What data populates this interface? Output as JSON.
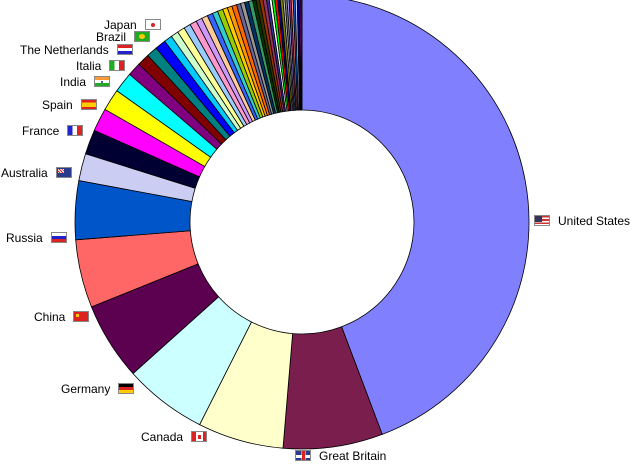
{
  "chart_data": {
    "type": "pie",
    "donut": true,
    "title": "",
    "legend": "none",
    "slices": [
      {
        "label": "United States",
        "value": 45.6,
        "color": "#8080ff",
        "flag": "flag-us-icon"
      },
      {
        "label": "Great Britain",
        "value": 7.3,
        "color": "#7a1e4e",
        "flag": "flag-gb-icon"
      },
      {
        "label": "Canada",
        "value": 6.3,
        "color": "#ffffcc",
        "flag": "flag-ca-icon"
      },
      {
        "label": "Germany",
        "value": 6.1,
        "color": "#ccffff",
        "flag": "flag-de-icon"
      },
      {
        "label": "China",
        "value": 5.7,
        "color": "#5c0050",
        "flag": "flag-cn-icon"
      },
      {
        "label": "Russia",
        "value": 5.0,
        "color": "#ff6666",
        "flag": "flag-ru-icon"
      },
      {
        "label": "Australia",
        "value": 4.3,
        "color": "#0055c8",
        "flag": "flag-au-icon"
      },
      {
        "label": "France",
        "value": 2.0,
        "color": "#cccdf3",
        "flag": "flag-fr-icon"
      },
      {
        "label": "Spain",
        "value": 1.8,
        "color": "#000033",
        "flag": "flag-es-icon"
      },
      {
        "label": "",
        "value": 1.7,
        "color": "#ff00ff"
      },
      {
        "label": "India",
        "value": 1.6,
        "color": "#ffff00",
        "flag": "flag-in-icon"
      },
      {
        "label": "Italia",
        "value": 1.5,
        "color": "#00ffff",
        "flag": "flag-it-icon"
      },
      {
        "label": "",
        "value": 1.0,
        "color": "#800080"
      },
      {
        "label": "The Netherlands",
        "value": 0.9,
        "color": "#800000",
        "flag": "flag-nl-icon"
      },
      {
        "label": "",
        "value": 0.8,
        "color": "#008080"
      },
      {
        "label": "Brazil",
        "value": 0.8,
        "color": "#0000ff",
        "flag": "flag-br-icon"
      },
      {
        "label": "Japan",
        "value": 0.6,
        "color": "#00ccff",
        "flag": "flag-jp-icon"
      },
      {
        "label": "",
        "value": 0.55,
        "color": "#ccffcc"
      },
      {
        "label": "",
        "value": 0.55,
        "color": "#ffff99"
      },
      {
        "label": "",
        "value": 0.5,
        "color": "#99ccff"
      },
      {
        "label": "",
        "value": 0.5,
        "color": "#ff99cc"
      },
      {
        "label": "",
        "value": 0.45,
        "color": "#cc99ff"
      },
      {
        "label": "",
        "value": 0.45,
        "color": "#ffcc99"
      },
      {
        "label": "",
        "value": 0.4,
        "color": "#3366ff"
      },
      {
        "label": "",
        "value": 0.4,
        "color": "#33cccc"
      },
      {
        "label": "",
        "value": 0.4,
        "color": "#99cc00"
      },
      {
        "label": "",
        "value": 0.35,
        "color": "#ffcc00"
      },
      {
        "label": "",
        "value": 0.35,
        "color": "#ff9900"
      },
      {
        "label": "",
        "value": 0.35,
        "color": "#ff6600"
      },
      {
        "label": "",
        "value": 0.3,
        "color": "#666699"
      },
      {
        "label": "",
        "value": 0.3,
        "color": "#969696"
      },
      {
        "label": "",
        "value": 0.3,
        "color": "#003366"
      },
      {
        "label": "",
        "value": 0.3,
        "color": "#339966"
      },
      {
        "label": "",
        "value": 0.25,
        "color": "#003300"
      },
      {
        "label": "",
        "value": 0.25,
        "color": "#333300"
      },
      {
        "label": "",
        "value": 0.25,
        "color": "#993300"
      },
      {
        "label": "",
        "value": 0.25,
        "color": "#993366"
      },
      {
        "label": "",
        "value": 0.2,
        "color": "#333399"
      },
      {
        "label": "",
        "value": 0.2,
        "color": "#ffffff"
      },
      {
        "label": "",
        "value": 0.2,
        "color": "#00ff00"
      },
      {
        "label": "",
        "value": 0.2,
        "color": "#ff0000"
      },
      {
        "label": "",
        "value": 0.2,
        "color": "#000080"
      },
      {
        "label": "",
        "value": 0.2,
        "color": "#808000"
      },
      {
        "label": "",
        "value": 0.15,
        "color": "#c0c0c0"
      },
      {
        "label": "",
        "value": 0.15,
        "color": "#808080"
      },
      {
        "label": "",
        "value": 0.15,
        "color": "#9999ff"
      },
      {
        "label": "",
        "value": 0.15,
        "color": "#993366"
      },
      {
        "label": "",
        "value": 0.15,
        "color": "#ff8080"
      },
      {
        "label": "",
        "value": 0.15,
        "color": "#0066cc"
      },
      {
        "label": "",
        "value": 0.15,
        "color": "#ccccff"
      },
      {
        "label": "",
        "value": 0.15,
        "color": "#000080"
      },
      {
        "label": "",
        "value": 0.1,
        "color": "#ff00ff"
      },
      {
        "label": "",
        "value": 0.1,
        "color": "#800000"
      }
    ]
  }
}
